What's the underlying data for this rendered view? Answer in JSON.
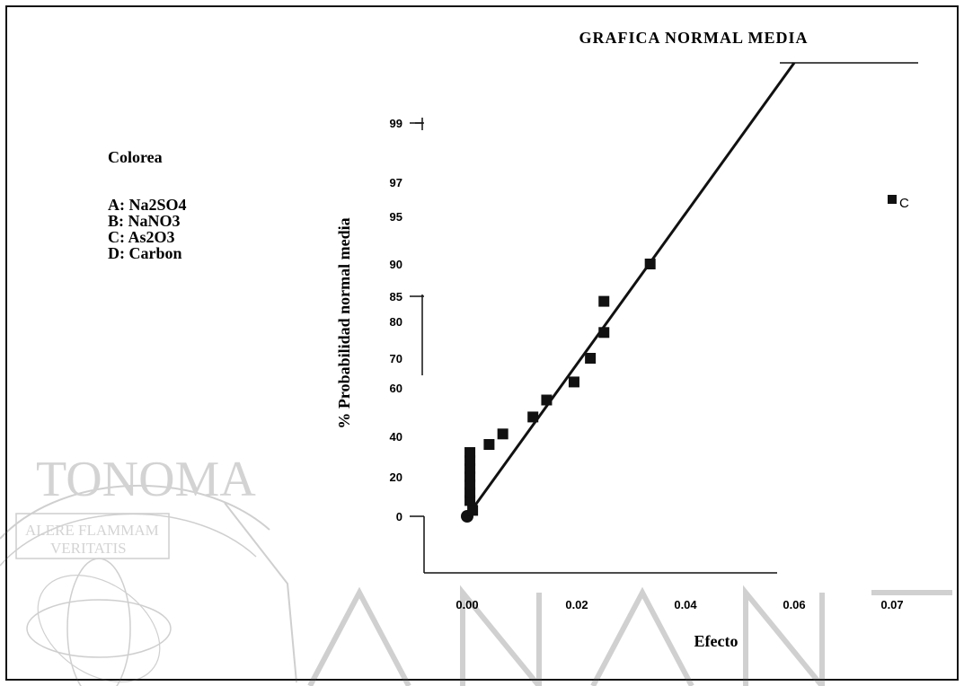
{
  "chart_data": {
    "type": "scatter",
    "title": "GRAFICA NORMAL MEDIA",
    "xlabel": "Efecto",
    "ylabel": "% Probabilidad normal media",
    "x_ticks": [
      {
        "value": 0.0,
        "label": "0.00"
      },
      {
        "value": 0.02,
        "label": "0.02"
      },
      {
        "value": 0.04,
        "label": "0.04"
      },
      {
        "value": 0.06,
        "label": "0.06"
      },
      {
        "value": 0.07,
        "label": "0.07"
      }
    ],
    "y_ticks": [
      {
        "value": 0,
        "label": "0"
      },
      {
        "value": 20,
        "label": "20"
      },
      {
        "value": 40,
        "label": "40"
      },
      {
        "value": 60,
        "label": "60"
      },
      {
        "value": 70,
        "label": "70"
      },
      {
        "value": 80,
        "label": "80"
      },
      {
        "value": 85,
        "label": "85"
      },
      {
        "value": 90,
        "label": "90"
      },
      {
        "value": 95,
        "label": "95"
      },
      {
        "value": 97,
        "label": "97"
      },
      {
        "value": 99,
        "label": "99"
      }
    ],
    "legend": {
      "title": "Colorea",
      "items": [
        "A: Na2SO4",
        "B: NaNO3",
        "C: As2O3",
        "D: Carbon"
      ],
      "placement": "left"
    },
    "points": [
      {
        "x": 0.0,
        "y": 0
      },
      {
        "x": 0.001,
        "y": 3
      },
      {
        "x": 0.0005,
        "y": 8
      },
      {
        "x": 0.0005,
        "y": 12
      },
      {
        "x": 0.0005,
        "y": 16
      },
      {
        "x": 0.0005,
        "y": 20
      },
      {
        "x": 0.0005,
        "y": 24
      },
      {
        "x": 0.0005,
        "y": 28
      },
      {
        "x": 0.0005,
        "y": 32
      },
      {
        "x": 0.004,
        "y": 36
      },
      {
        "x": 0.0065,
        "y": 41
      },
      {
        "x": 0.012,
        "y": 48
      },
      {
        "x": 0.0145,
        "y": 55
      },
      {
        "x": 0.0195,
        "y": 62
      },
      {
        "x": 0.0225,
        "y": 70
      },
      {
        "x": 0.025,
        "y": 77
      },
      {
        "x": 0.025,
        "y": 84
      },
      {
        "x": 0.0335,
        "y": 90
      },
      {
        "x": 0.07,
        "y": 96,
        "label": "C"
      }
    ],
    "fit_line": {
      "x": [
        0.0,
        0.06
      ],
      "y": [
        0,
        99.9
      ]
    },
    "grid": false
  },
  "watermark": {
    "seal_text": "TONOMA",
    "motto_line1": "ALERE FLAMMAM",
    "motto_line2": "VERITATIS"
  }
}
